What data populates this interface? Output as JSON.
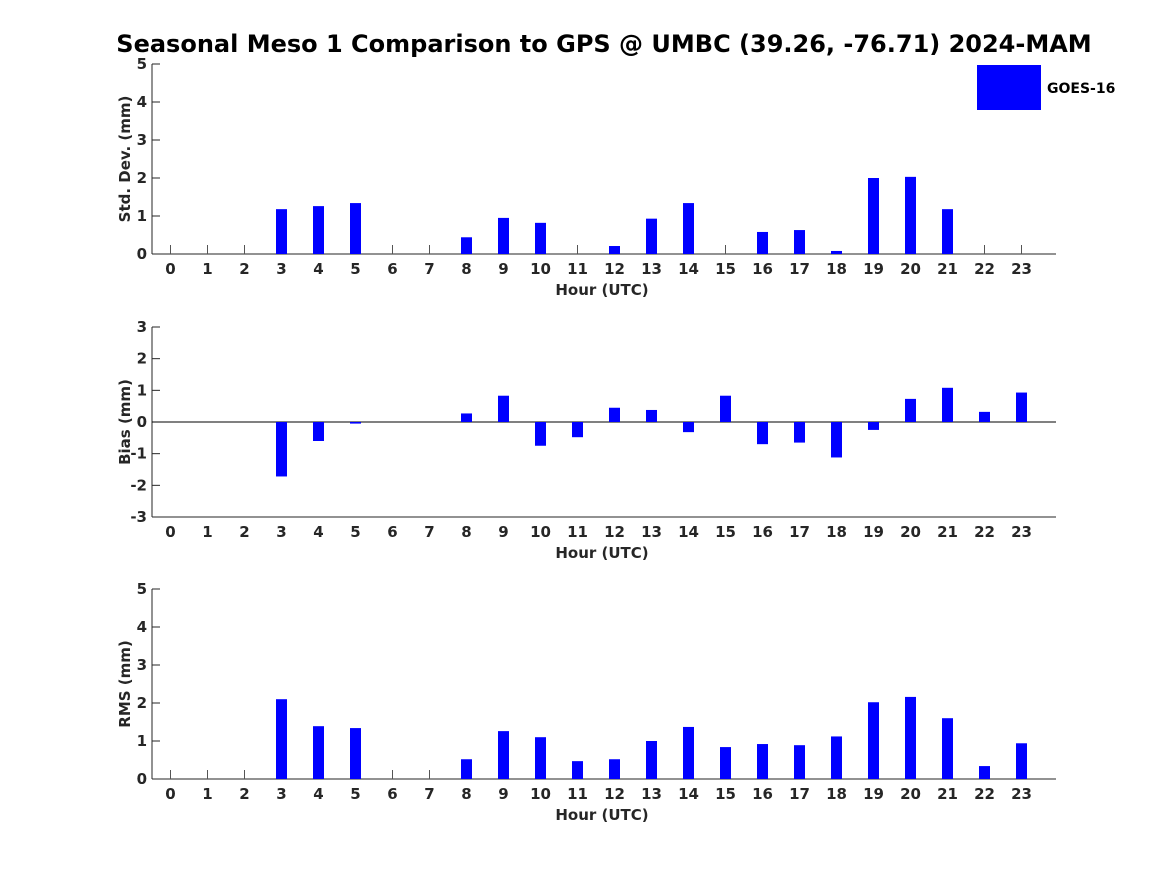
{
  "title": "Seasonal Meso 1 Comparison to GPS @ UMBC (39.26, -76.71) 2024-MAM",
  "legend": {
    "label": "GOES-16",
    "color": "#0000ff",
    "placement": "top-right"
  },
  "chart_data": [
    {
      "type": "bar",
      "name": "std",
      "xlabel": "Hour (UTC)",
      "ylabel": "Std. Dev. (mm)",
      "ylim": [
        0,
        5
      ],
      "yticks": [
        0,
        1,
        2,
        3,
        4,
        5
      ],
      "categories": [
        "0",
        "1",
        "2",
        "3",
        "4",
        "5",
        "6",
        "7",
        "8",
        "9",
        "10",
        "11",
        "12",
        "13",
        "14",
        "15",
        "16",
        "17",
        "18",
        "19",
        "20",
        "21",
        "22",
        "23"
      ],
      "values": [
        0,
        0,
        0,
        1.18,
        1.26,
        1.34,
        0,
        0,
        0.44,
        0.95,
        0.82,
        0,
        0.21,
        0.93,
        1.34,
        0,
        0.58,
        0.63,
        0.08,
        2.0,
        2.03,
        1.18,
        0,
        0
      ],
      "missing": [
        0,
        1,
        2,
        6,
        7,
        11,
        15,
        22,
        23
      ]
    },
    {
      "type": "bar",
      "name": "bias",
      "xlabel": "Hour (UTC)",
      "ylabel": "Bias (mm)",
      "ylim": [
        -3,
        3
      ],
      "yticks": [
        -3,
        -2,
        -1,
        0,
        1,
        2,
        3
      ],
      "categories": [
        "0",
        "1",
        "2",
        "3",
        "4",
        "5",
        "6",
        "7",
        "8",
        "9",
        "10",
        "11",
        "12",
        "13",
        "14",
        "15",
        "16",
        "17",
        "18",
        "19",
        "20",
        "21",
        "22",
        "23"
      ],
      "values": [
        0,
        0,
        0,
        -1.72,
        -0.6,
        -0.05,
        0,
        0,
        0.27,
        0.83,
        -0.75,
        -0.48,
        0.45,
        0.38,
        -0.32,
        0.83,
        -0.7,
        -0.65,
        -1.12,
        -0.25,
        0.73,
        1.08,
        0.32,
        0.93
      ],
      "missing": [
        0,
        1,
        2,
        6,
        7
      ]
    },
    {
      "type": "bar",
      "name": "rms",
      "xlabel": "Hour (UTC)",
      "ylabel": "RMS (mm)",
      "ylim": [
        0,
        5
      ],
      "yticks": [
        0,
        1,
        2,
        3,
        4,
        5
      ],
      "categories": [
        "0",
        "1",
        "2",
        "3",
        "4",
        "5",
        "6",
        "7",
        "8",
        "9",
        "10",
        "11",
        "12",
        "13",
        "14",
        "15",
        "16",
        "17",
        "18",
        "19",
        "20",
        "21",
        "22",
        "23"
      ],
      "values": [
        0,
        0,
        0,
        2.1,
        1.39,
        1.34,
        0,
        0,
        0.52,
        1.26,
        1.1,
        0.47,
        0.52,
        1.0,
        1.37,
        0.84,
        0.92,
        0.89,
        1.12,
        2.02,
        2.16,
        1.6,
        0.34,
        0.94
      ],
      "missing": [
        0,
        1,
        2,
        6,
        7
      ]
    }
  ]
}
